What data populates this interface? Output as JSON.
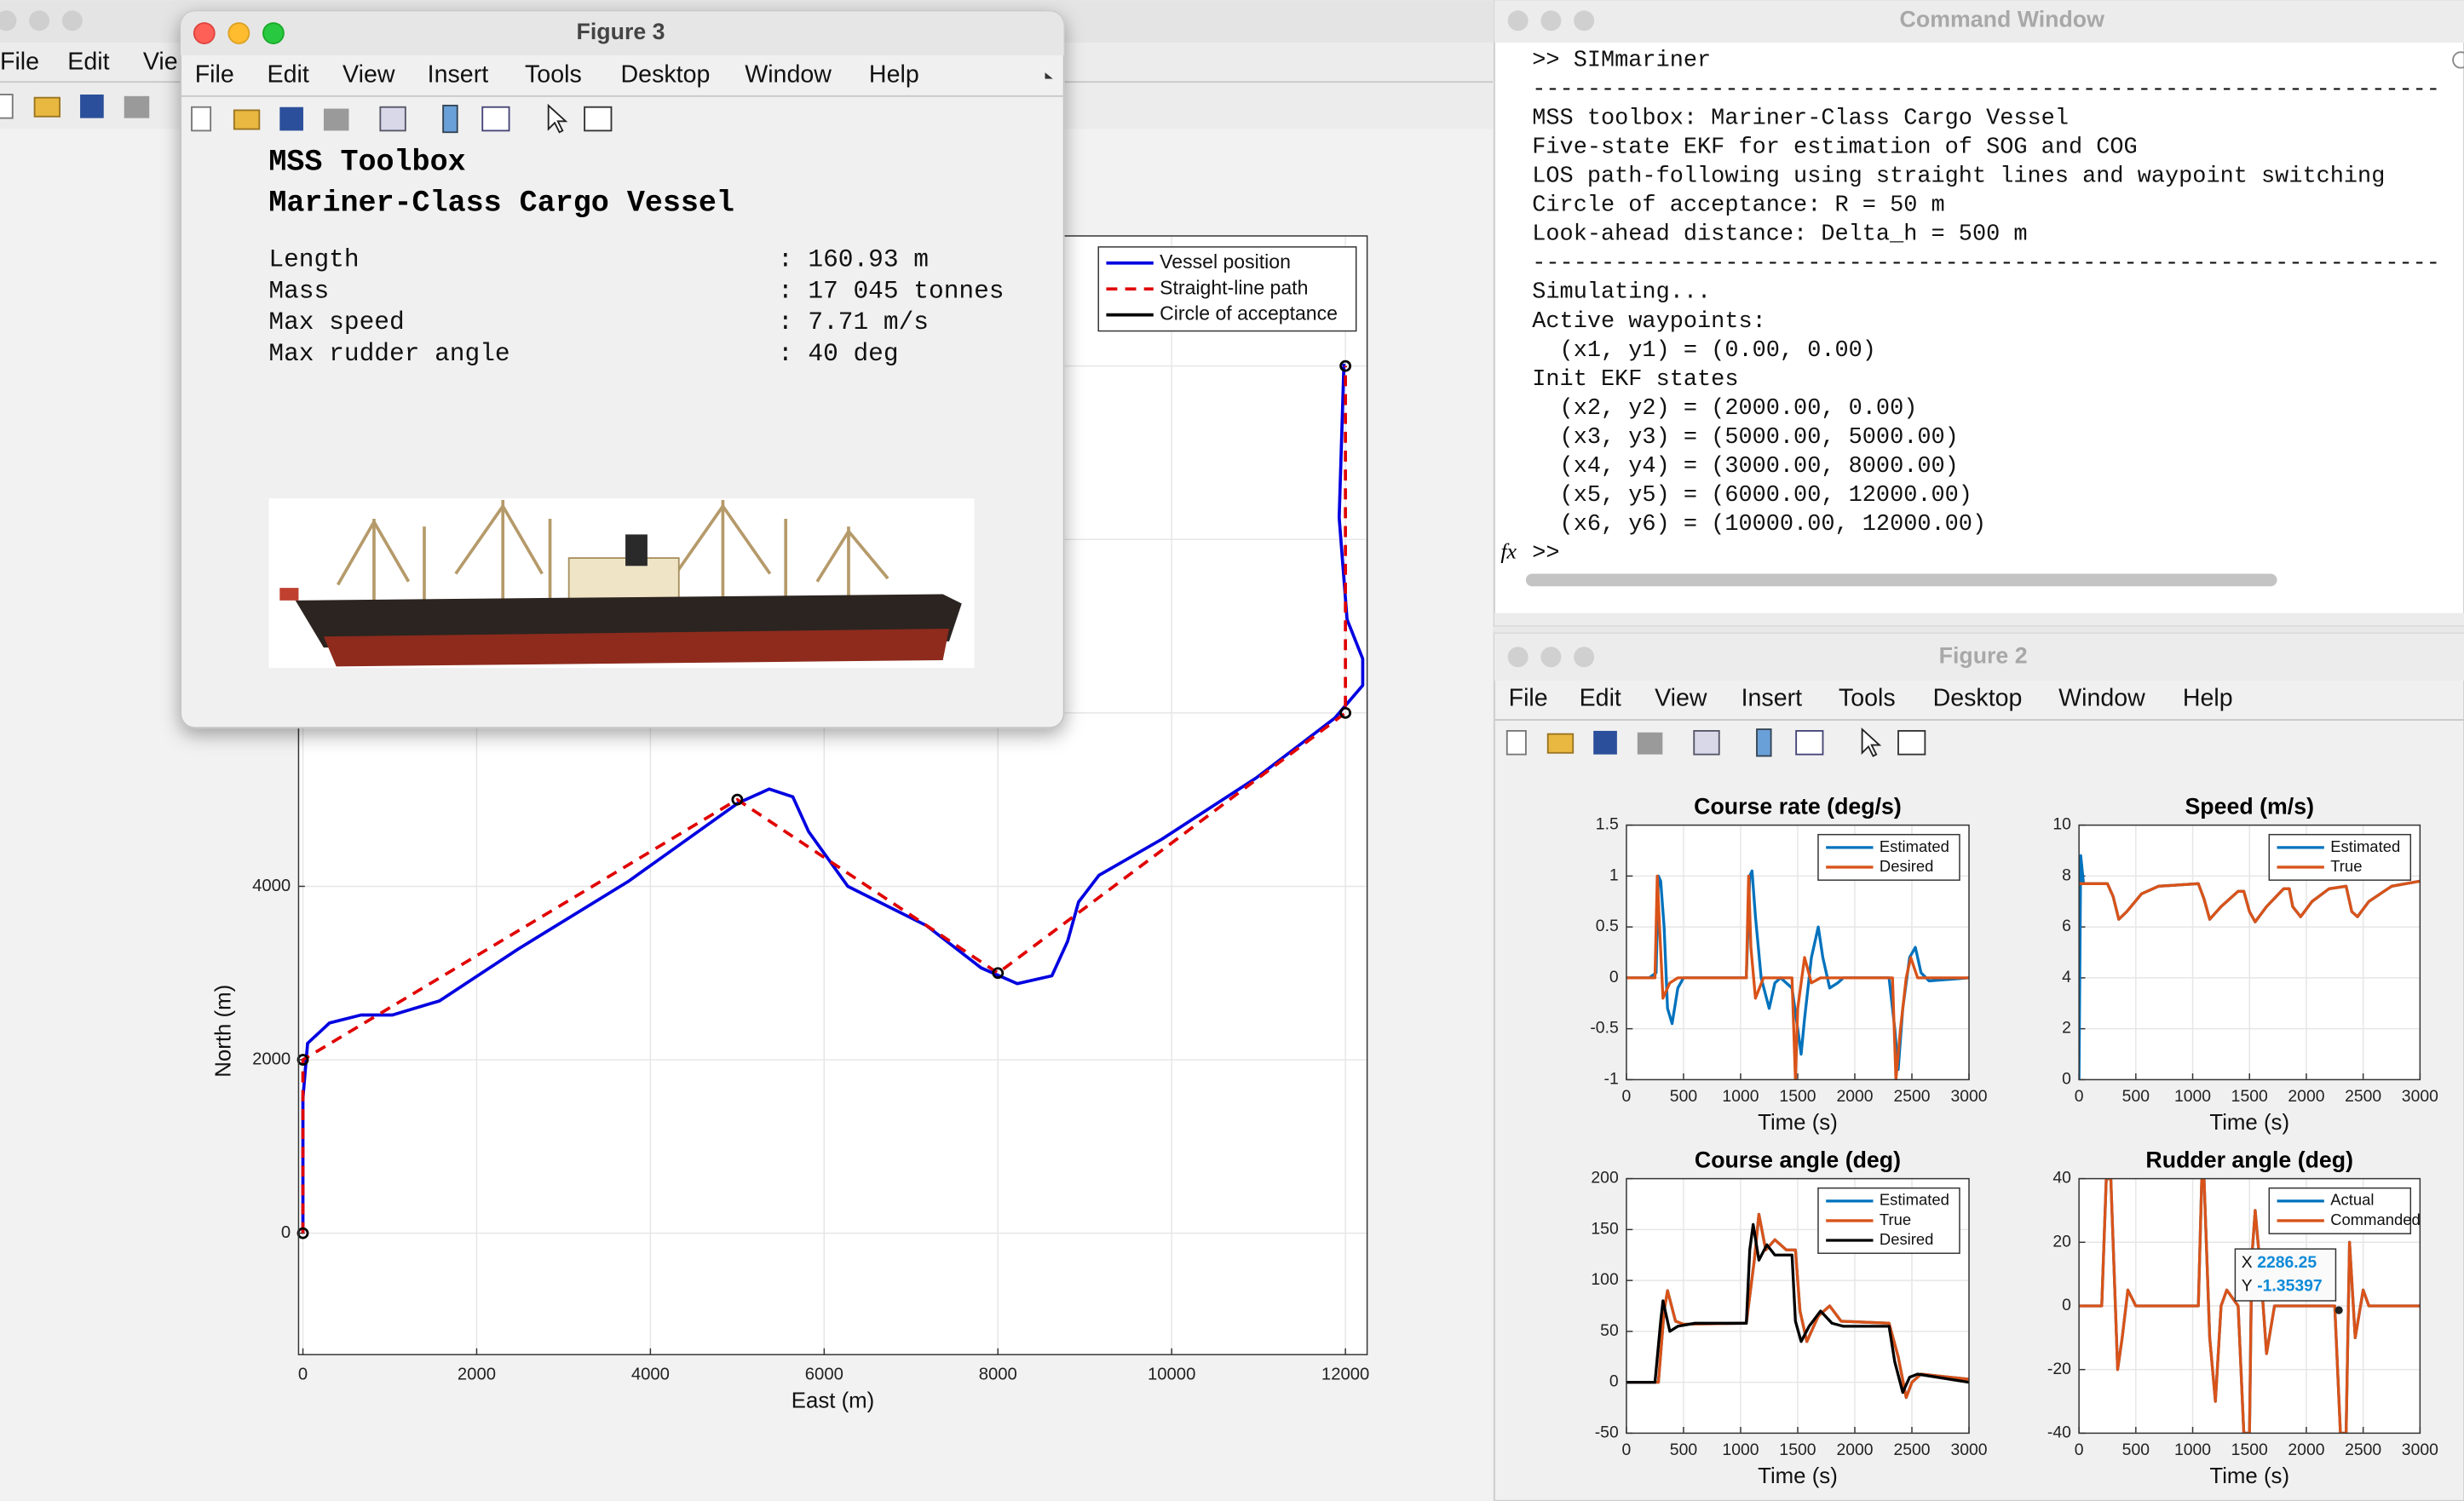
{
  "figure1": {
    "menu": [
      "File",
      "Edit",
      "Vie"
    ],
    "chart": {
      "type": "line",
      "xlabel": "East (m)",
      "ylabel": "North (m)",
      "xlim": [
        -50,
        12250
      ],
      "ylim": [
        -1400,
        11500
      ],
      "xticks": [
        0,
        2000,
        4000,
        6000,
        8000,
        10000,
        12000
      ],
      "yticks": [
        0,
        2000,
        4000,
        6000,
        8000,
        10000
      ],
      "grid": true,
      "legend": "northeast",
      "series": [
        {
          "name": "Vessel position",
          "color": "#0000e0",
          "line_style": "-",
          "x": [
            0,
            0,
            54,
            307,
            669,
            1030,
            1572,
            2476,
            3741,
            5006,
            5368,
            5639,
            5820,
            6272,
            7176,
            7808,
            8223,
            8621,
            8802,
            8928,
            9163,
            9886,
            10971,
            11874,
            12199,
            12199,
            12019,
            11928,
            11983
          ],
          "values": [
            0,
            1557,
            2190,
            2425,
            2516,
            2516,
            2679,
            3276,
            4054,
            4959,
            5122,
            5032,
            4633,
            4000,
            3548,
            3059,
            2878,
            2968,
            3366,
            3819,
            4127,
            4543,
            5249,
            5937,
            6317,
            6624,
            7077,
            8253,
            10027
          ]
        },
        {
          "name": "Straight-line path",
          "color": "#e00000",
          "line_style": "--",
          "x": [
            0,
            0,
            5000,
            8000,
            12000,
            12000
          ],
          "values": [
            0,
            2000,
            5000,
            3000,
            6000,
            10000
          ]
        },
        {
          "name": "Circle of acceptance",
          "color": "#000000",
          "line_style": "none",
          "marker": "o",
          "x": [
            0,
            0,
            5000,
            8000,
            12000,
            12000
          ],
          "values": [
            0,
            2000,
            5000,
            3000,
            6000,
            10000
          ]
        }
      ]
    }
  },
  "figure3": {
    "title": "Figure 3",
    "menu": [
      "File",
      "Edit",
      "View",
      "Insert",
      "Tools",
      "Desktop",
      "Window",
      "Help"
    ],
    "heading": [
      "MSS Toolbox",
      "Mariner-Class Cargo Vessel"
    ],
    "specs": [
      [
        "Length",
        ": 160.93 m"
      ],
      [
        "Mass",
        ": 17 045 tonnes"
      ],
      [
        "Max speed",
        ": 7.71 m/s"
      ],
      [
        "Max rudder angle",
        ": 40 deg"
      ]
    ]
  },
  "command_window": {
    "title": "Command Window",
    "lines": [
      ">> SIMmariner",
      "------------------------------------------------------------------",
      "MSS toolbox: Mariner-Class Cargo Vessel",
      "Five-state EKF for estimation of SOG and COG",
      "LOS path-following using straight lines and waypoint switching",
      "Circle of acceptance: R = 50 m",
      "Look-ahead distance: Delta_h = 500 m",
      "------------------------------------------------------------------",
      "Simulating...",
      "Active waypoints:",
      "  (x1, y1) = (0.00, 0.00)",
      "Init EKF states",
      "  (x2, y2) = (2000.00, 0.00)",
      "  (x3, y3) = (5000.00, 5000.00)",
      "  (x4, y4) = (3000.00, 8000.00)",
      "  (x5, y5) = (6000.00, 12000.00)",
      "  (x6, y6) = (10000.00, 12000.00)",
      ">>"
    ]
  },
  "figure2": {
    "title": "Figure 2",
    "menu": [
      "File",
      "Edit",
      "View",
      "Insert",
      "Tools",
      "Desktop",
      "Window",
      "Help"
    ],
    "charts": [
      {
        "type": "line",
        "title": "Course rate (deg/s)",
        "xlabel": "Time (s)",
        "xlim": [
          0,
          3000
        ],
        "ylim": [
          -1,
          1.5
        ],
        "xticks": [
          0,
          500,
          1000,
          1500,
          2000,
          2500,
          3000
        ],
        "yticks": [
          -1,
          -0.5,
          0,
          0.5,
          1,
          1.5
        ],
        "grid": true,
        "legend": "northeast",
        "series": [
          {
            "name": "Estimated",
            "color": "#0072bd",
            "line_style": "-",
            "x": [
              0,
              200,
              260,
              280,
              300,
              330,
              360,
              400,
              450,
              500,
              1000,
              1050,
              1080,
              1100,
              1130,
              1180,
              1250,
              1300,
              1350,
              1450,
              1500,
              1530,
              1560,
              1620,
              1680,
              1720,
              1780,
              1850,
              1900,
              2300,
              2350,
              2380,
              2420,
              2480,
              2530,
              2580,
              2650,
              3000
            ],
            "values": [
              0,
              0,
              0.05,
              1,
              0.95,
              0.5,
              -0.3,
              -0.45,
              -0.1,
              0,
              0,
              0,
              1,
              1.05,
              0.6,
              0,
              -0.3,
              -0.05,
              0,
              -0.1,
              -0.5,
              -0.75,
              -0.4,
              0.2,
              0.5,
              0.2,
              -0.1,
              -0.05,
              0,
              0,
              -0.5,
              -0.9,
              -0.3,
              0.2,
              0.3,
              0.05,
              -0.03,
              0
            ]
          },
          {
            "name": "Desired",
            "color": "#d95319",
            "line_style": "-",
            "x": [
              0,
              250,
              270,
              290,
              320,
              380,
              450,
              1050,
              1070,
              1090,
              1130,
              1200,
              1450,
              1480,
              1500,
              1560,
              1620,
              1700,
              2330,
              2360,
              2400,
              2450,
              2490,
              2550,
              3000
            ],
            "values": [
              0,
              0,
              1,
              0.5,
              -0.2,
              -0.05,
              0,
              0,
              1,
              0.3,
              -0.2,
              0,
              0,
              -1,
              -0.3,
              0.2,
              -0.05,
              0,
              0,
              -1,
              -0.5,
              0,
              0.2,
              0,
              0
            ]
          }
        ]
      },
      {
        "type": "line",
        "title": "Speed (m/s)",
        "xlabel": "Time (s)",
        "xlim": [
          0,
          3000
        ],
        "ylim": [
          0,
          10
        ],
        "xticks": [
          0,
          500,
          1000,
          1500,
          2000,
          2500,
          3000
        ],
        "yticks": [
          0,
          2,
          4,
          6,
          8,
          10
        ],
        "grid": true,
        "legend": "northeast",
        "series": [
          {
            "name": "Estimated",
            "color": "#0072bd",
            "line_style": "-",
            "x": [
              0,
              15,
              40,
              250,
              300,
              350,
              420,
              550,
              700,
              1050,
              1100,
              1150,
              1250,
              1400,
              1450,
              1500,
              1550,
              1650,
              1800,
              1850,
              1880,
              1950,
              2050,
              2200,
              2350,
              2400,
              2450,
              2550,
              2750,
              3000
            ],
            "values": [
              0,
              8.8,
              7.7,
              7.7,
              7.2,
              6.3,
              6.6,
              7.3,
              7.6,
              7.7,
              7.1,
              6.3,
              6.8,
              7.4,
              7.4,
              6.6,
              6.2,
              6.8,
              7.5,
              7.5,
              6.8,
              6.4,
              7,
              7.5,
              7.6,
              6.6,
              6.4,
              7,
              7.6,
              7.8
            ]
          },
          {
            "name": "True",
            "color": "#d95319",
            "line_style": "-",
            "x": [
              0,
              250,
              300,
              350,
              420,
              550,
              700,
              1050,
              1100,
              1150,
              1250,
              1400,
              1450,
              1500,
              1550,
              1650,
              1800,
              1850,
              1880,
              1950,
              2050,
              2200,
              2350,
              2400,
              2450,
              2550,
              2750,
              3000
            ],
            "values": [
              7.7,
              7.7,
              7.2,
              6.3,
              6.6,
              7.3,
              7.6,
              7.7,
              7.1,
              6.3,
              6.8,
              7.4,
              7.4,
              6.6,
              6.2,
              6.8,
              7.5,
              7.5,
              6.8,
              6.4,
              7,
              7.5,
              7.6,
              6.6,
              6.4,
              7,
              7.6,
              7.8
            ]
          }
        ]
      },
      {
        "type": "line",
        "title": "Course angle (deg)",
        "xlabel": "Time (s)",
        "xlim": [
          0,
          3000
        ],
        "ylim": [
          -50,
          200
        ],
        "xticks": [
          0,
          500,
          1000,
          1500,
          2000,
          2500,
          3000
        ],
        "yticks": [
          -50,
          0,
          50,
          100,
          150,
          200
        ],
        "grid": true,
        "legend": "northeast",
        "series": [
          {
            "name": "Estimated",
            "color": "#0072bd",
            "line_style": "-",
            "x": [
              0,
              280,
              330,
              360,
              430,
              500,
              1050,
              1120,
              1160,
              1220,
              1300,
              1400,
              1480,
              1520,
              1580,
              1680,
              1780,
              1880,
              2300,
              2380,
              2450,
              2500,
              2580,
              3000
            ],
            "values": [
              0,
              0,
              70,
              90,
              60,
              57,
              58,
              120,
              165,
              130,
              140,
              130,
              130,
              70,
              40,
              65,
              75,
              60,
              58,
              25,
              -15,
              0,
              8,
              3
            ]
          },
          {
            "name": "True",
            "color": "#d95319",
            "line_style": "-",
            "x": [
              0,
              280,
              330,
              360,
              430,
              500,
              1050,
              1120,
              1160,
              1220,
              1300,
              1400,
              1480,
              1520,
              1580,
              1680,
              1780,
              1880,
              2300,
              2380,
              2450,
              2500,
              2580,
              3000
            ],
            "values": [
              0,
              0,
              70,
              90,
              60,
              57,
              58,
              120,
              165,
              130,
              140,
              130,
              130,
              70,
              40,
              65,
              75,
              60,
              58,
              25,
              -15,
              0,
              8,
              3
            ]
          },
          {
            "name": "Desired",
            "color": "#000000",
            "line_style": "-",
            "x": [
              0,
              250,
              300,
              320,
              380,
              450,
              600,
              1050,
              1080,
              1110,
              1160,
              1230,
              1300,
              1450,
              1480,
              1530,
              1600,
              1700,
              1800,
              1900,
              2300,
              2350,
              2420,
              2480,
              2550,
              3000
            ],
            "values": [
              0,
              0,
              60,
              80,
              50,
              55,
              58,
              58,
              130,
              155,
              120,
              135,
              125,
              125,
              60,
              40,
              55,
              70,
              58,
              55,
              55,
              20,
              -10,
              5,
              8,
              0
            ]
          }
        ]
      },
      {
        "type": "line",
        "title": "Rudder angle (deg)",
        "xlabel": "Time (s)",
        "xlim": [
          0,
          3000
        ],
        "ylim": [
          -40,
          40
        ],
        "xticks": [
          0,
          500,
          1000,
          1500,
          2000,
          2500,
          3000
        ],
        "yticks": [
          -40,
          -20,
          0,
          20,
          40
        ],
        "grid": true,
        "legend": "northeast",
        "series": [
          {
            "name": "Actual",
            "color": "#0072bd",
            "line_style": "-",
            "x": [
              0,
              200,
              240,
              280,
              300,
              340,
              380,
              430,
              500,
              1050,
              1080,
              1100,
              1150,
              1200,
              1250,
              1300,
              1400,
              1450,
              1500,
              1520,
              1550,
              1600,
              1650,
              1720,
              2250,
              2300,
              2350,
              2380,
              2430,
              2500,
              2550,
              3000
            ],
            "values": [
              0,
              0,
              40,
              40,
              20,
              -20,
              -10,
              5,
              0,
              0,
              40,
              40,
              -10,
              -30,
              0,
              5,
              0,
              -40,
              -40,
              15,
              30,
              10,
              -15,
              0,
              0,
              -40,
              -40,
              20,
              -10,
              5,
              0,
              0
            ]
          },
          {
            "name": "Commanded",
            "color": "#d95319",
            "line_style": "-",
            "x": [
              0,
              200,
              240,
              280,
              300,
              340,
              380,
              430,
              500,
              1050,
              1080,
              1100,
              1150,
              1200,
              1250,
              1300,
              1400,
              1450,
              1500,
              1520,
              1550,
              1600,
              1650,
              1720,
              2250,
              2300,
              2350,
              2380,
              2430,
              2500,
              2550,
              3000
            ],
            "values": [
              0,
              0,
              40,
              40,
              20,
              -20,
              -10,
              5,
              0,
              0,
              40,
              40,
              -10,
              -30,
              0,
              5,
              0,
              -40,
              -40,
              15,
              30,
              10,
              -15,
              0,
              0,
              -40,
              -40,
              20,
              -10,
              5,
              0,
              0
            ]
          }
        ],
        "datatip": {
          "x_label": "X",
          "x": 2286.25,
          "y_label": "Y",
          "y": -1.35397
        }
      }
    ]
  }
}
